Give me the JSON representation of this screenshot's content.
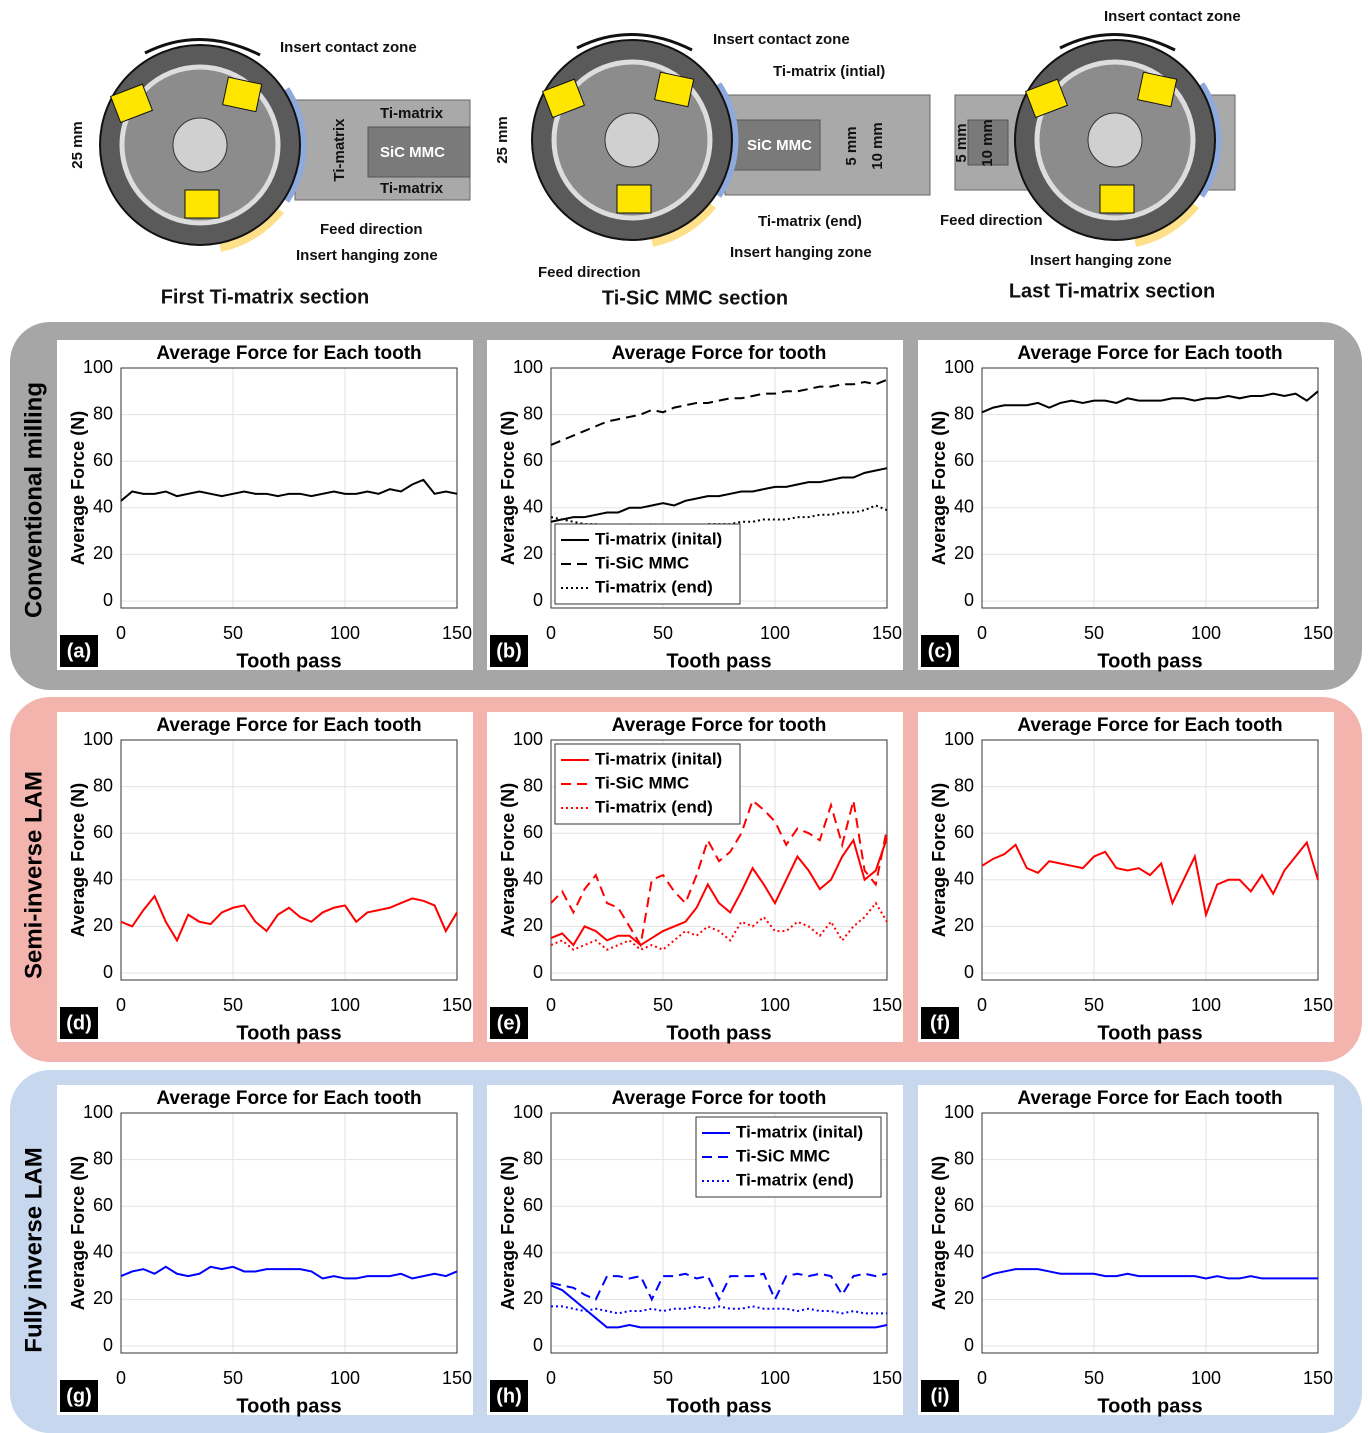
{
  "diagrams": [
    {
      "title": "First Ti-matrix section",
      "labels": [
        "Insert contact zone",
        "Ti-matrix",
        "SiC MMC",
        "Ti-matrix",
        "Ti-matrix",
        "Feed direction",
        "Insert hanging zone",
        "25 mm"
      ]
    },
    {
      "title": "Ti-SiC MMC section",
      "labels": [
        "Insert contact zone",
        "Ti-matrix (intial)",
        "SiC MMC",
        "5 mm",
        "10 mm",
        "Ti-matrix (end)",
        "Insert hanging zone",
        "Feed direction",
        "25 mm"
      ]
    },
    {
      "title": "Last Ti-matrix section",
      "labels": [
        "Insert contact zone",
        "5 mm",
        "10 mm",
        "Feed direction",
        "Insert hanging zone"
      ]
    }
  ],
  "rows": [
    "Conventional milling",
    "Semi-inverse LAM",
    "Fully inverse LAM"
  ],
  "chart_data": [
    {
      "type": "line",
      "title": "Average Force for Each tooth",
      "panel": "(a)",
      "xlabel": "Tooth pass",
      "ylabel": "Average Force (N)",
      "x": [
        0,
        5,
        10,
        15,
        20,
        25,
        30,
        35,
        40,
        45,
        50,
        55,
        60,
        65,
        70,
        75,
        80,
        85,
        90,
        95,
        100,
        105,
        110,
        115,
        120,
        125,
        130,
        135,
        140,
        145,
        150
      ],
      "values": [
        43,
        47,
        46,
        46,
        47,
        45,
        46,
        47,
        46,
        45,
        46,
        47,
        46,
        46,
        45,
        46,
        46,
        45,
        46,
        47,
        46,
        46,
        47,
        46,
        48,
        47,
        50,
        52,
        46,
        47,
        46
      ],
      "color": "#000000",
      "xlim": [
        0,
        150
      ],
      "xticks": [
        0,
        50,
        100,
        150
      ],
      "ylim": [
        -3,
        100
      ],
      "yticks": [
        0,
        20,
        40,
        60,
        80,
        100
      ],
      "grid": true
    },
    {
      "type": "line",
      "title": "Average Force for tooth",
      "panel": "(b)",
      "xlabel": "Tooth pass",
      "ylabel": "Average Force (N)",
      "x": [
        0,
        5,
        10,
        15,
        20,
        25,
        30,
        35,
        40,
        45,
        50,
        55,
        60,
        65,
        70,
        75,
        80,
        85,
        90,
        95,
        100,
        105,
        110,
        115,
        120,
        125,
        130,
        135,
        140,
        145,
        150
      ],
      "series": [
        {
          "name": "Ti-matrix (inital)",
          "color": "#000000",
          "dash": "solid",
          "values": [
            34,
            35,
            36,
            36,
            37,
            38,
            38,
            40,
            40,
            41,
            42,
            41,
            43,
            44,
            45,
            45,
            46,
            47,
            47,
            48,
            49,
            49,
            50,
            51,
            51,
            52,
            53,
            53,
            55,
            56,
            57
          ]
        },
        {
          "name": "Ti-SiC MMC",
          "color": "#000000",
          "dash": "dashed",
          "values": [
            67,
            69,
            71,
            73,
            75,
            77,
            78,
            79,
            80,
            82,
            81,
            83,
            84,
            85,
            85,
            86,
            87,
            87,
            88,
            89,
            89,
            90,
            90,
            91,
            92,
            92,
            93,
            93,
            94,
            93,
            95
          ]
        },
        {
          "name": "Ti-matrix (end)",
          "color": "#000000",
          "dash": "dotted",
          "values": [
            36,
            35,
            34,
            33,
            33,
            32,
            32,
            33,
            32,
            33,
            32,
            31,
            32,
            32,
            33,
            33,
            33,
            34,
            34,
            35,
            35,
            35,
            36,
            36,
            37,
            37,
            38,
            38,
            39,
            41,
            39
          ]
        }
      ],
      "legend": "lower left",
      "xlim": [
        0,
        150
      ],
      "xticks": [
        0,
        50,
        100,
        150
      ],
      "ylim": [
        -3,
        100
      ],
      "yticks": [
        0,
        20,
        40,
        60,
        80,
        100
      ],
      "grid": true
    },
    {
      "type": "line",
      "title": "Average Force for Each tooth",
      "panel": "(c)",
      "xlabel": "Tooth pass",
      "ylabel": "Average Force (N)",
      "x": [
        0,
        5,
        10,
        15,
        20,
        25,
        30,
        35,
        40,
        45,
        50,
        55,
        60,
        65,
        70,
        75,
        80,
        85,
        90,
        95,
        100,
        105,
        110,
        115,
        120,
        125,
        130,
        135,
        140,
        145,
        150
      ],
      "values": [
        81,
        83,
        84,
        84,
        84,
        85,
        83,
        85,
        86,
        85,
        86,
        86,
        85,
        87,
        86,
        86,
        86,
        87,
        87,
        86,
        87,
        87,
        88,
        87,
        88,
        88,
        89,
        88,
        89,
        86,
        90
      ],
      "color": "#000000",
      "xlim": [
        0,
        150
      ],
      "xticks": [
        0,
        50,
        100,
        150
      ],
      "ylim": [
        -3,
        100
      ],
      "yticks": [
        0,
        20,
        40,
        60,
        80,
        100
      ],
      "grid": true
    },
    {
      "type": "line",
      "title": "Average Force for Each tooth",
      "panel": "(d)",
      "xlabel": "Tooth pass",
      "ylabel": "Average Force (N)",
      "x": [
        0,
        5,
        10,
        15,
        20,
        25,
        30,
        35,
        40,
        45,
        50,
        55,
        60,
        65,
        70,
        75,
        80,
        85,
        90,
        95,
        100,
        105,
        110,
        115,
        120,
        125,
        130,
        135,
        140,
        145,
        150
      ],
      "values": [
        22,
        20,
        27,
        33,
        22,
        14,
        25,
        22,
        21,
        26,
        28,
        29,
        22,
        18,
        25,
        28,
        24,
        22,
        26,
        28,
        29,
        22,
        26,
        27,
        28,
        30,
        32,
        31,
        29,
        18,
        26
      ],
      "color": "#ff0000",
      "xlim": [
        0,
        150
      ],
      "xticks": [
        0,
        50,
        100,
        150
      ],
      "ylim": [
        -3,
        100
      ],
      "yticks": [
        0,
        20,
        40,
        60,
        80,
        100
      ],
      "grid": true
    },
    {
      "type": "line",
      "title": "Average Force for tooth",
      "panel": "(e)",
      "xlabel": "Tooth pass",
      "ylabel": "Average Force (N)",
      "x": [
        0,
        5,
        10,
        15,
        20,
        25,
        30,
        35,
        40,
        45,
        50,
        55,
        60,
        65,
        70,
        75,
        80,
        85,
        90,
        95,
        100,
        105,
        110,
        115,
        120,
        125,
        130,
        135,
        140,
        145,
        150
      ],
      "series": [
        {
          "name": "Ti-matrix (inital)",
          "color": "#ff0000",
          "dash": "solid",
          "values": [
            15,
            17,
            12,
            20,
            18,
            14,
            16,
            16,
            12,
            15,
            18,
            20,
            22,
            28,
            38,
            30,
            26,
            35,
            45,
            38,
            30,
            40,
            50,
            44,
            36,
            40,
            50,
            57,
            40,
            44,
            58
          ]
        },
        {
          "name": "Ti-SiC MMC",
          "color": "#ff0000",
          "dash": "dashed",
          "values": [
            30,
            35,
            26,
            36,
            42,
            30,
            28,
            20,
            12,
            40,
            42,
            35,
            30,
            42,
            57,
            48,
            52,
            60,
            74,
            70,
            65,
            55,
            62,
            60,
            57,
            72,
            55,
            74,
            44,
            38,
            62
          ]
        },
        {
          "name": "Ti-matrix (end)",
          "color": "#ff0000",
          "dash": "dotted",
          "values": [
            12,
            14,
            10,
            12,
            14,
            10,
            12,
            14,
            10,
            12,
            10,
            14,
            18,
            16,
            20,
            18,
            14,
            22,
            20,
            24,
            18,
            18,
            22,
            20,
            16,
            22,
            14,
            20,
            24,
            30,
            22
          ]
        }
      ],
      "legend": "upper left",
      "xlim": [
        0,
        150
      ],
      "xticks": [
        0,
        50,
        100,
        150
      ],
      "ylim": [
        -3,
        100
      ],
      "yticks": [
        0,
        20,
        40,
        60,
        80,
        100
      ],
      "grid": true
    },
    {
      "type": "line",
      "title": "Average Force for Each tooth",
      "panel": "(f)",
      "xlabel": "Tooth pass",
      "ylabel": "Average Force (N)",
      "x": [
        0,
        5,
        10,
        15,
        20,
        25,
        30,
        35,
        40,
        45,
        50,
        55,
        60,
        65,
        70,
        75,
        80,
        85,
        90,
        95,
        100,
        105,
        110,
        115,
        120,
        125,
        130,
        135,
        140,
        145,
        150
      ],
      "values": [
        46,
        49,
        51,
        55,
        45,
        43,
        48,
        47,
        46,
        45,
        50,
        52,
        45,
        44,
        45,
        42,
        47,
        30,
        40,
        50,
        25,
        38,
        40,
        40,
        35,
        42,
        34,
        44,
        50,
        56,
        40
      ],
      "color": "#ff0000",
      "xlim": [
        0,
        150
      ],
      "xticks": [
        0,
        50,
        100,
        150
      ],
      "ylim": [
        -3,
        100
      ],
      "yticks": [
        0,
        20,
        40,
        60,
        80,
        100
      ],
      "grid": true
    },
    {
      "type": "line",
      "title": "Average Force for Each tooth",
      "panel": "(g)",
      "xlabel": "Tooth pass",
      "ylabel": "Average Force (N)",
      "x": [
        0,
        5,
        10,
        15,
        20,
        25,
        30,
        35,
        40,
        45,
        50,
        55,
        60,
        65,
        70,
        75,
        80,
        85,
        90,
        95,
        100,
        105,
        110,
        115,
        120,
        125,
        130,
        135,
        140,
        145,
        150
      ],
      "values": [
        30,
        32,
        33,
        31,
        34,
        31,
        30,
        31,
        34,
        33,
        34,
        32,
        32,
        33,
        33,
        33,
        33,
        32,
        29,
        30,
        29,
        29,
        30,
        30,
        30,
        31,
        29,
        30,
        31,
        30,
        32
      ],
      "color": "#0000ff",
      "xlim": [
        0,
        150
      ],
      "xticks": [
        0,
        50,
        100,
        150
      ],
      "ylim": [
        -3,
        100
      ],
      "yticks": [
        0,
        20,
        40,
        60,
        80,
        100
      ],
      "grid": true
    },
    {
      "type": "line",
      "title": "Average Force for tooth",
      "panel": "(h)",
      "xlabel": "Tooth pass",
      "ylabel": "Average Force (N)",
      "x": [
        0,
        5,
        10,
        15,
        20,
        25,
        30,
        35,
        40,
        45,
        50,
        55,
        60,
        65,
        70,
        75,
        80,
        85,
        90,
        95,
        100,
        105,
        110,
        115,
        120,
        125,
        130,
        135,
        140,
        145,
        150
      ],
      "series": [
        {
          "name": "Ti-matrix (inital)",
          "color": "#0000ff",
          "dash": "solid",
          "values": [
            26,
            24,
            20,
            16,
            12,
            8,
            8,
            9,
            8,
            8,
            8,
            8,
            8,
            8,
            8,
            8,
            8,
            8,
            8,
            8,
            8,
            8,
            8,
            8,
            8,
            8,
            8,
            8,
            8,
            8,
            9
          ]
        },
        {
          "name": "Ti-SiC MMC",
          "color": "#0000ff",
          "dash": "dashed",
          "values": [
            27,
            26,
            25,
            22,
            20,
            30,
            30,
            29,
            30,
            20,
            30,
            30,
            31,
            29,
            30,
            20,
            30,
            30,
            30,
            31,
            20,
            30,
            31,
            30,
            31,
            30,
            22,
            30,
            31,
            30,
            31
          ]
        },
        {
          "name": "Ti-matrix (end)",
          "color": "#0000ff",
          "dash": "dotted",
          "values": [
            17,
            17,
            16,
            15,
            16,
            15,
            14,
            15,
            15,
            16,
            15,
            16,
            16,
            17,
            16,
            17,
            16,
            16,
            17,
            16,
            16,
            16,
            15,
            16,
            15,
            15,
            14,
            15,
            14,
            14,
            14
          ]
        }
      ],
      "legend": "upper right",
      "xlim": [
        0,
        150
      ],
      "xticks": [
        0,
        50,
        100,
        150
      ],
      "ylim": [
        -3,
        100
      ],
      "yticks": [
        0,
        20,
        40,
        60,
        80,
        100
      ],
      "grid": true
    },
    {
      "type": "line",
      "title": "Average Force for Each tooth",
      "panel": "(i)",
      "xlabel": "Tooth pass",
      "ylabel": "Average Force (N)",
      "x": [
        0,
        5,
        10,
        15,
        20,
        25,
        30,
        35,
        40,
        45,
        50,
        55,
        60,
        65,
        70,
        75,
        80,
        85,
        90,
        95,
        100,
        105,
        110,
        115,
        120,
        125,
        130,
        135,
        140,
        145,
        150
      ],
      "values": [
        29,
        31,
        32,
        33,
        33,
        33,
        32,
        31,
        31,
        31,
        31,
        30,
        30,
        31,
        30,
        30,
        30,
        30,
        30,
        30,
        29,
        30,
        29,
        29,
        30,
        29,
        29,
        29,
        29,
        29,
        29
      ],
      "color": "#0000ff",
      "xlim": [
        0,
        150
      ],
      "xticks": [
        0,
        50,
        100,
        150
      ],
      "ylim": [
        -3,
        100
      ],
      "yticks": [
        0,
        20,
        40,
        60,
        80,
        100
      ],
      "grid": true
    }
  ]
}
